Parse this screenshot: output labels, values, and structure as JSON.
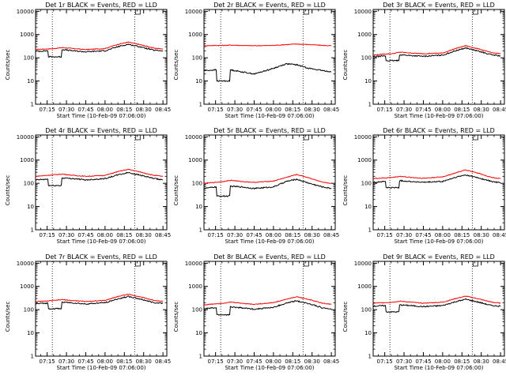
{
  "xlabel": "Start Time (10-Feb-09 07:06:00)",
  "ylabel": "Counts/sec",
  "xticks": [
    "07:15",
    "07:30",
    "07:45",
    "08:00",
    "08:15",
    "08:30",
    "08:45"
  ],
  "yticks": [
    "1",
    "10",
    "100",
    "1000",
    "10000"
  ],
  "chart_data": [
    {
      "type": "line",
      "title": "Det 1r  BLACK = Events, RED = LLD",
      "xlim": [
        "07:06",
        "08:48"
      ],
      "ylim": [
        1,
        12000
      ],
      "yscale": "log",
      "grid": false,
      "xlabel": "Start Time (10-Feb-09 07:06:00)",
      "ylabel": "Counts/sec",
      "x": [
        "07:06",
        "07:15",
        "07:21",
        "07:27",
        "07:35",
        "07:45",
        "08:00",
        "08:10",
        "08:18",
        "08:28",
        "08:38",
        "08:45"
      ],
      "series": [
        {
          "name": "LLD",
          "color": "#ff0000",
          "values": [
            230,
            240,
            250,
            275,
            250,
            225,
            250,
            380,
            470,
            360,
            260,
            240
          ]
        },
        {
          "name": "Events",
          "color": "#000000",
          "values": [
            190,
            200,
            110,
            225,
            200,
            180,
            200,
            300,
            380,
            290,
            210,
            200
          ]
        }
      ],
      "markers": [
        "07:19",
        "08:23"
      ]
    },
    {
      "type": "line",
      "title": "Det 2r  BLACK = Events, RED = LLD",
      "xlim": [
        "07:06",
        "08:48"
      ],
      "ylim": [
        1,
        12000
      ],
      "yscale": "log",
      "grid": false,
      "xlabel": "Start Time (10-Feb-09 07:06:00)",
      "ylabel": "Counts/sec",
      "x": [
        "07:06",
        "07:15",
        "07:21",
        "07:27",
        "07:35",
        "07:45",
        "08:00",
        "08:10",
        "08:18",
        "08:28",
        "08:38",
        "08:45"
      ],
      "series": [
        {
          "name": "LLD",
          "color": "#ff0000",
          "values": [
            330,
            340,
            340,
            350,
            340,
            330,
            340,
            370,
            390,
            370,
            340,
            330
          ]
        },
        {
          "name": "Events",
          "color": "#000000",
          "values": [
            28,
            30,
            10,
            30,
            25,
            20,
            35,
            55,
            50,
            35,
            28,
            25
          ]
        }
      ],
      "markers": [
        "07:19",
        "08:23"
      ]
    },
    {
      "type": "line",
      "title": "Det 3r  BLACK = Events, RED = LLD",
      "xlim": [
        "07:06",
        "08:48"
      ],
      "ylim": [
        1,
        12000
      ],
      "yscale": "log",
      "grid": false,
      "xlabel": "Start Time (10-Feb-09 07:06:00)",
      "ylabel": "Counts/sec",
      "x": [
        "07:06",
        "07:15",
        "07:21",
        "07:27",
        "07:35",
        "07:45",
        "08:00",
        "08:10",
        "08:18",
        "08:28",
        "08:38",
        "08:45"
      ],
      "series": [
        {
          "name": "LLD",
          "color": "#ff0000",
          "values": [
            130,
            145,
            150,
            175,
            160,
            150,
            160,
            250,
            330,
            240,
            165,
            150
          ]
        },
        {
          "name": "Events",
          "color": "#000000",
          "values": [
            110,
            120,
            75,
            135,
            125,
            115,
            130,
            200,
            265,
            190,
            135,
            120
          ]
        }
      ],
      "markers": [
        "07:19",
        "08:23"
      ]
    },
    {
      "type": "line",
      "title": "Det 4r  BLACK = Events, RED = LLD",
      "xlim": [
        "07:06",
        "08:48"
      ],
      "ylim": [
        1,
        12000
      ],
      "yscale": "log",
      "grid": false,
      "xlabel": "Start Time (10-Feb-09 07:06:00)",
      "ylabel": "Counts/sec",
      "x": [
        "07:06",
        "07:15",
        "07:21",
        "07:27",
        "07:35",
        "07:45",
        "08:00",
        "08:10",
        "08:18",
        "08:28",
        "08:38",
        "08:45"
      ],
      "series": [
        {
          "name": "LLD",
          "color": "#ff0000",
          "values": [
            200,
            220,
            235,
            250,
            220,
            200,
            220,
            320,
            400,
            300,
            220,
            200
          ]
        },
        {
          "name": "Events",
          "color": "#000000",
          "values": [
            140,
            150,
            80,
            170,
            160,
            140,
            160,
            230,
            290,
            220,
            160,
            140
          ]
        }
      ],
      "markers": [
        "07:19",
        "08:23"
      ]
    },
    {
      "type": "line",
      "title": "Det 5r  BLACK = Events, RED = LLD",
      "xlim": [
        "07:06",
        "08:48"
      ],
      "ylim": [
        1,
        12000
      ],
      "yscale": "log",
      "grid": false,
      "xlabel": "Start Time (10-Feb-09 07:06:00)",
      "ylabel": "Counts/sec",
      "x": [
        "07:06",
        "07:15",
        "07:21",
        "07:27",
        "07:35",
        "07:45",
        "08:00",
        "08:10",
        "08:18",
        "08:28",
        "08:38",
        "08:45"
      ],
      "series": [
        {
          "name": "LLD",
          "color": "#ff0000",
          "values": [
            100,
            110,
            120,
            135,
            120,
            110,
            125,
            180,
            240,
            170,
            110,
            100
          ]
        },
        {
          "name": "Events",
          "color": "#000000",
          "values": [
            60,
            70,
            28,
            75,
            70,
            60,
            70,
            120,
            150,
            100,
            70,
            60
          ]
        }
      ],
      "markers": [
        "07:19",
        "08:23"
      ]
    },
    {
      "type": "line",
      "title": "Det 6r  BLACK = Events, RED = LLD",
      "xlim": [
        "07:06",
        "08:48"
      ],
      "ylim": [
        1,
        12000
      ],
      "yscale": "log",
      "grid": false,
      "xlabel": "Start Time (10-Feb-09 07:06:00)",
      "ylabel": "Counts/sec",
      "x": [
        "07:06",
        "07:15",
        "07:21",
        "07:27",
        "07:35",
        "07:45",
        "08:00",
        "08:10",
        "08:18",
        "08:28",
        "08:38",
        "08:45"
      ],
      "series": [
        {
          "name": "LLD",
          "color": "#ff0000",
          "values": [
            160,
            170,
            180,
            200,
            180,
            165,
            190,
            280,
            380,
            270,
            180,
            160
          ]
        },
        {
          "name": "Events",
          "color": "#000000",
          "values": [
            110,
            120,
            65,
            130,
            120,
            110,
            120,
            180,
            230,
            170,
            120,
            105
          ]
        }
      ],
      "markers": [
        "07:19",
        "08:23"
      ]
    },
    {
      "type": "line",
      "title": "Det 7r  BLACK = Events, RED = LLD",
      "xlim": [
        "07:06",
        "08:48"
      ],
      "ylim": [
        1,
        12000
      ],
      "yscale": "log",
      "grid": false,
      "xlabel": "Start Time (10-Feb-09 07:06:00)",
      "ylabel": "Counts/sec",
      "x": [
        "07:06",
        "07:15",
        "07:21",
        "07:27",
        "07:35",
        "07:45",
        "08:00",
        "08:10",
        "08:18",
        "08:28",
        "08:38",
        "08:45"
      ],
      "series": [
        {
          "name": "LLD",
          "color": "#ff0000",
          "values": [
            220,
            235,
            250,
            270,
            245,
            225,
            250,
            370,
            460,
            350,
            250,
            230
          ]
        },
        {
          "name": "Events",
          "color": "#000000",
          "values": [
            180,
            190,
            110,
            210,
            195,
            175,
            200,
            290,
            370,
            280,
            200,
            190
          ]
        }
      ],
      "markers": [
        "07:19",
        "08:23"
      ]
    },
    {
      "type": "line",
      "title": "Det 8r  BLACK = Events, RED = LLD",
      "xlim": [
        "07:06",
        "08:48"
      ],
      "ylim": [
        1,
        12000
      ],
      "yscale": "log",
      "grid": false,
      "xlabel": "Start Time (10-Feb-09 07:06:00)",
      "ylabel": "Counts/sec",
      "x": [
        "07:06",
        "07:15",
        "07:21",
        "07:27",
        "07:35",
        "07:45",
        "08:00",
        "08:10",
        "08:18",
        "08:28",
        "08:38",
        "08:45"
      ],
      "series": [
        {
          "name": "LLD",
          "color": "#ff0000",
          "values": [
            160,
            180,
            190,
            210,
            190,
            170,
            200,
            280,
            360,
            270,
            190,
            170
          ]
        },
        {
          "name": "Events",
          "color": "#000000",
          "values": [
            110,
            120,
            60,
            130,
            120,
            105,
            125,
            190,
            240,
            180,
            120,
            105
          ]
        }
      ],
      "markers": [
        "07:19",
        "08:23"
      ]
    },
    {
      "type": "line",
      "title": "Det 9r  BLACK = Events, RED = LLD",
      "xlim": [
        "07:06",
        "08:48"
      ],
      "ylim": [
        1,
        12000
      ],
      "yscale": "log",
      "grid": false,
      "xlabel": "Start Time (10-Feb-09 07:06:00)",
      "ylabel": "Counts/sec",
      "x": [
        "07:06",
        "07:15",
        "07:21",
        "07:27",
        "07:35",
        "07:45",
        "08:00",
        "08:10",
        "08:18",
        "08:28",
        "08:38",
        "08:45"
      ],
      "series": [
        {
          "name": "LLD",
          "color": "#ff0000",
          "values": [
            190,
            200,
            210,
            230,
            210,
            190,
            210,
            300,
            380,
            290,
            210,
            190
          ]
        },
        {
          "name": "Events",
          "color": "#000000",
          "values": [
            140,
            150,
            80,
            160,
            150,
            135,
            150,
            220,
            280,
            210,
            150,
            140
          ]
        }
      ],
      "markers": [
        "07:19",
        "08:23"
      ]
    }
  ]
}
